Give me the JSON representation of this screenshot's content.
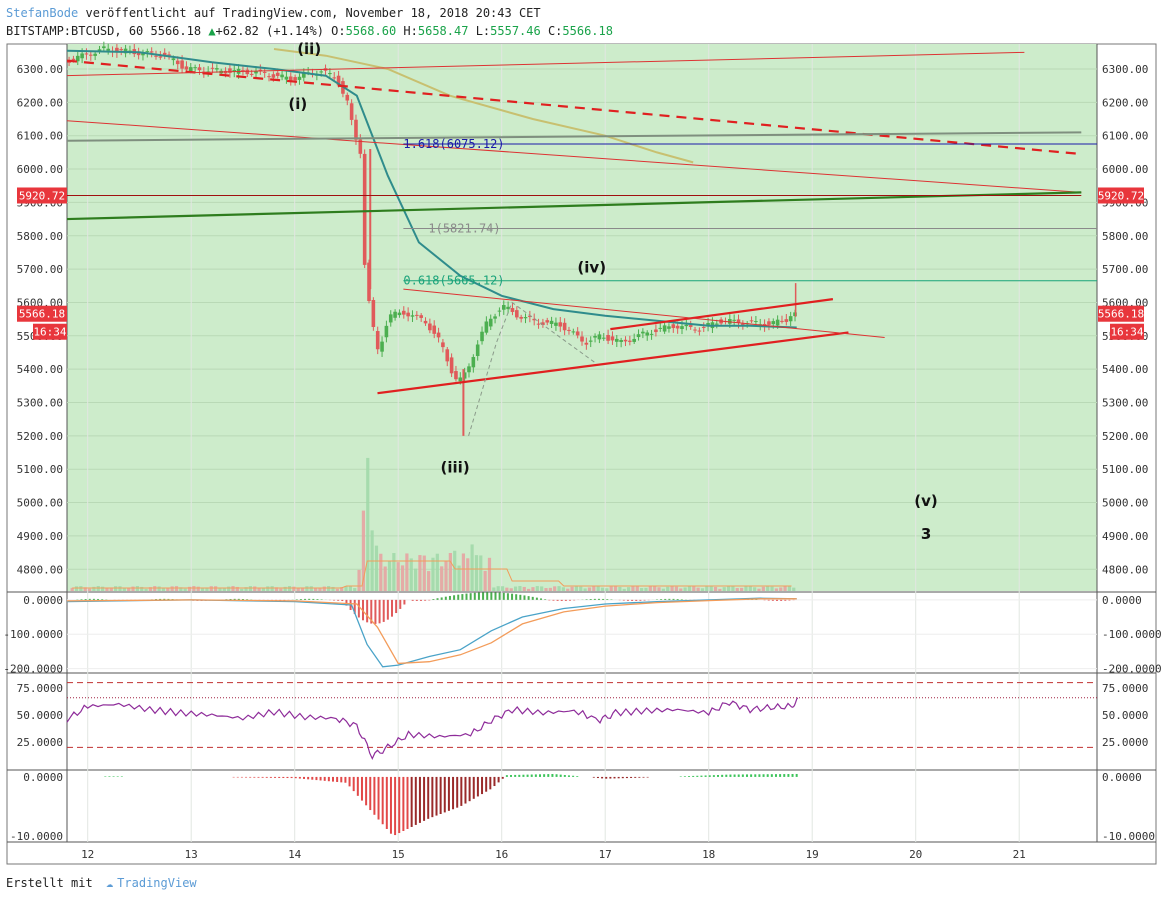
{
  "header": {
    "author": "StefanBode",
    "published": " veröffentlicht auf TradingView.com, November 18, 2018 20:43 CET",
    "symbol": "BITSTAMP:BTCUSD, 60 5566.18",
    "change_arrow": "▲",
    "change": "+62.82 (+1.14%)",
    "o_label": "O:",
    "o_value": "5568.60",
    "h_label": "H:",
    "h_value": "5658.47",
    "l_label": "L:",
    "l_value": "5557.46",
    "c_label": "C:",
    "c_value": "5566.18"
  },
  "footer": {
    "made_with": "Erstellt mit",
    "brand": "TradingView"
  },
  "colors": {
    "background": "#cdeccb",
    "up": "#4caf50",
    "down": "#e05a5a",
    "ma_teal": "#2f8c8c",
    "ma_olive": "#c8c070",
    "trend_red": "#e02020",
    "trend_green": "#2e7d1e",
    "macd_line": "#4aa3c8",
    "signal_line": "#f39c5a",
    "rsi": "#8e2c9a",
    "price_badge": "#e8363c"
  },
  "chart_data": {
    "type": "candlestick",
    "symbol": "BITSTAMP:BTCUSD",
    "interval": "60",
    "x_ticks": [
      "12",
      "13",
      "14",
      "15",
      "16",
      "17",
      "18",
      "19",
      "20",
      "21"
    ],
    "price_axis": {
      "ticks": [
        "6300.00",
        "6200.00",
        "6100.00",
        "6000.00",
        "5900.00",
        "5800.00",
        "5700.00",
        "5600.00",
        "5500.00",
        "5400.00",
        "5300.00",
        "5200.00",
        "5100.00",
        "5000.00",
        "4900.00",
        "4800.00"
      ],
      "range": [
        4740,
        6340
      ],
      "current_price": "5566.18",
      "countdown": "16:34",
      "level_badge": "5920.72"
    },
    "fib_levels": [
      {
        "label": "1.618(6075.12)",
        "price": 6075.12
      },
      {
        "label": "1(5821.74)",
        "price": 5821.74
      },
      {
        "label": "0.618(5665.12)",
        "price": 5665.12
      }
    ],
    "annotations": [
      {
        "text": "(ii)",
        "day": 14.14,
        "price": 6345
      },
      {
        "text": "(i)",
        "day": 14.03,
        "price": 6180
      },
      {
        "text": "(iii)",
        "day": 15.55,
        "price": 5090
      },
      {
        "text": "(iv)",
        "day": 16.87,
        "price": 5690
      },
      {
        "text": "(v)",
        "day": 20.1,
        "price": 4990
      },
      {
        "text": "3",
        "day": 20.1,
        "price": 4890
      }
    ],
    "ohlc_path": [
      [
        11.8,
        6320
      ],
      [
        12.2,
        6360
      ],
      [
        12.5,
        6350
      ],
      [
        12.8,
        6340
      ],
      [
        13.0,
        6300
      ],
      [
        13.3,
        6295
      ],
      [
        13.7,
        6290
      ],
      [
        14.0,
        6270
      ],
      [
        14.3,
        6295
      ],
      [
        14.45,
        6270
      ],
      [
        14.55,
        6200
      ],
      [
        14.62,
        6100
      ],
      [
        14.68,
        6050
      ],
      [
        14.72,
        5700
      ],
      [
        14.78,
        5550
      ],
      [
        14.85,
        5450
      ],
      [
        14.95,
        5560
      ],
      [
        15.1,
        5570
      ],
      [
        15.3,
        5545
      ],
      [
        15.45,
        5480
      ],
      [
        15.55,
        5400
      ],
      [
        15.62,
        5360
      ],
      [
        15.7,
        5390
      ],
      [
        15.8,
        5470
      ],
      [
        15.9,
        5540
      ],
      [
        16.05,
        5590
      ],
      [
        16.2,
        5560
      ],
      [
        16.4,
        5540
      ],
      [
        16.6,
        5535
      ],
      [
        16.85,
        5480
      ],
      [
        17.0,
        5500
      ],
      [
        17.2,
        5480
      ],
      [
        17.45,
        5510
      ],
      [
        17.7,
        5530
      ],
      [
        17.95,
        5520
      ],
      [
        18.15,
        5545
      ],
      [
        18.4,
        5540
      ],
      [
        18.6,
        5535
      ],
      [
        18.78,
        5545
      ],
      [
        18.84,
        5566
      ]
    ],
    "moving_averages": [
      {
        "color": "teal",
        "points": [
          [
            11.8,
            6355
          ],
          [
            12.5,
            6350
          ],
          [
            13.2,
            6320
          ],
          [
            13.8,
            6300
          ],
          [
            14.3,
            6280
          ],
          [
            14.6,
            6220
          ],
          [
            14.9,
            5980
          ],
          [
            15.2,
            5780
          ],
          [
            15.6,
            5680
          ],
          [
            16.0,
            5620
          ],
          [
            16.5,
            5580
          ],
          [
            17.0,
            5560
          ],
          [
            17.5,
            5545
          ],
          [
            18.0,
            5530
          ],
          [
            18.4,
            5530
          ],
          [
            18.85,
            5525
          ]
        ]
      },
      {
        "color": "olive",
        "points": [
          [
            13.8,
            6360
          ],
          [
            14.3,
            6340
          ],
          [
            14.9,
            6300
          ],
          [
            15.5,
            6220
          ],
          [
            16.3,
            6150
          ],
          [
            17.0,
            6100
          ],
          [
            17.5,
            6050
          ],
          [
            17.85,
            6020
          ]
        ]
      }
    ],
    "trend_lines": [
      {
        "style": "dashed-red",
        "from": [
          11.8,
          6325
        ],
        "to": [
          21.6,
          6045
        ]
      },
      {
        "style": "thin-red",
        "from": [
          11.8,
          6280
        ],
        "to": [
          21.05,
          6350
        ]
      },
      {
        "style": "thin-red",
        "from": [
          11.8,
          6145
        ],
        "to": [
          21.6,
          5930
        ]
      },
      {
        "style": "green",
        "from": [
          11.8,
          5850
        ],
        "to": [
          21.6,
          5930
        ]
      },
      {
        "style": "grey",
        "from": [
          11.8,
          6085
        ],
        "to": [
          21.6,
          6110
        ]
      },
      {
        "style": "horizontal-darkred",
        "from": [
          11.8,
          5920.72
        ],
        "to": [
          21.6,
          5920.72
        ]
      },
      {
        "style": "thick-red",
        "from": [
          14.8,
          5328
        ],
        "to": [
          19.35,
          5510
        ]
      },
      {
        "style": "thick-red",
        "from": [
          17.05,
          5520
        ],
        "to": [
          19.2,
          5610
        ]
      },
      {
        "style": "thin-red",
        "from": [
          15.05,
          5640
        ],
        "to": [
          19.7,
          5495
        ]
      }
    ],
    "volume": {
      "note": "relative bar heights, 0-1",
      "spikes": [
        [
          14.7,
          1.0
        ],
        [
          14.75,
          0.45
        ],
        [
          14.8,
          0.35
        ],
        [
          15.2,
          0.25
        ],
        [
          15.55,
          0.3
        ],
        [
          15.72,
          0.35
        ]
      ]
    },
    "macd": {
      "ticks": [
        "0.0000",
        "-100.0000",
        "-200.0000"
      ],
      "range": [
        -210,
        20
      ],
      "macd_line": [
        [
          11.8,
          -5
        ],
        [
          13.0,
          0
        ],
        [
          14.0,
          -5
        ],
        [
          14.55,
          -15
        ],
        [
          14.7,
          -130
        ],
        [
          14.85,
          -195
        ],
        [
          15.0,
          -190
        ],
        [
          15.3,
          -165
        ],
        [
          15.6,
          -145
        ],
        [
          15.9,
          -90
        ],
        [
          16.2,
          -50
        ],
        [
          16.6,
          -25
        ],
        [
          17.0,
          -12
        ],
        [
          17.5,
          -5
        ],
        [
          18.0,
          0
        ],
        [
          18.5,
          5
        ],
        [
          18.85,
          3
        ]
      ],
      "signal_line": [
        [
          11.8,
          -3
        ],
        [
          13.0,
          0
        ],
        [
          14.0,
          -3
        ],
        [
          14.6,
          -12
        ],
        [
          14.8,
          -80
        ],
        [
          15.0,
          -185
        ],
        [
          15.3,
          -180
        ],
        [
          15.6,
          -160
        ],
        [
          15.9,
          -125
        ],
        [
          16.2,
          -70
        ],
        [
          16.6,
          -35
        ],
        [
          17.0,
          -18
        ],
        [
          17.5,
          -8
        ],
        [
          18.0,
          -2
        ],
        [
          18.5,
          3
        ],
        [
          18.85,
          3
        ]
      ],
      "histogram_note": "red below zero between 14.5 and 15.1, green above zero between 15.3 and 16.4"
    },
    "rsi": {
      "ticks": [
        "75.0000",
        "50.0000",
        "25.0000"
      ],
      "range": [
        0,
        88
      ],
      "upper_band": 80,
      "middle_band": 66,
      "lower_band": 20,
      "values": [
        [
          11.8,
          46
        ],
        [
          12.0,
          58
        ],
        [
          12.3,
          60
        ],
        [
          12.6,
          55
        ],
        [
          12.9,
          52
        ],
        [
          13.2,
          50
        ],
        [
          13.5,
          47
        ],
        [
          13.8,
          53
        ],
        [
          14.1,
          48
        ],
        [
          14.4,
          47
        ],
        [
          14.6,
          40
        ],
        [
          14.75,
          12
        ],
        [
          14.9,
          20
        ],
        [
          15.1,
          32
        ],
        [
          15.4,
          30
        ],
        [
          15.7,
          32
        ],
        [
          15.9,
          45
        ],
        [
          16.1,
          55
        ],
        [
          16.4,
          52
        ],
        [
          16.7,
          54
        ],
        [
          16.95,
          45
        ],
        [
          17.1,
          52
        ],
        [
          17.4,
          54
        ],
        [
          17.7,
          55
        ],
        [
          18.0,
          52
        ],
        [
          18.2,
          62
        ],
        [
          18.4,
          55
        ],
        [
          18.6,
          57
        ],
        [
          18.8,
          58
        ],
        [
          18.86,
          66
        ]
      ]
    },
    "momentum": {
      "ticks": [
        "0.0000",
        "-10.0000"
      ],
      "range": [
        -11,
        1
      ],
      "note": "red histogram below zero 14.5-16.0 (min about -10 near 14.95), green above zero 16.1-17.0 and 18.2-18.85",
      "values": [
        [
          11.8,
          -0.1
        ],
        [
          12.2,
          0.1
        ],
        [
          13.0,
          0
        ],
        [
          14.0,
          -0.2
        ],
        [
          14.5,
          -1
        ],
        [
          14.7,
          -5
        ],
        [
          14.95,
          -10
        ],
        [
          15.3,
          -7
        ],
        [
          15.6,
          -5
        ],
        [
          15.9,
          -2
        ],
        [
          16.05,
          0.3
        ],
        [
          16.5,
          0.5
        ],
        [
          17.0,
          -0.3
        ],
        [
          17.6,
          0
        ],
        [
          18.2,
          0.4
        ],
        [
          18.85,
          0.5
        ]
      ]
    }
  }
}
